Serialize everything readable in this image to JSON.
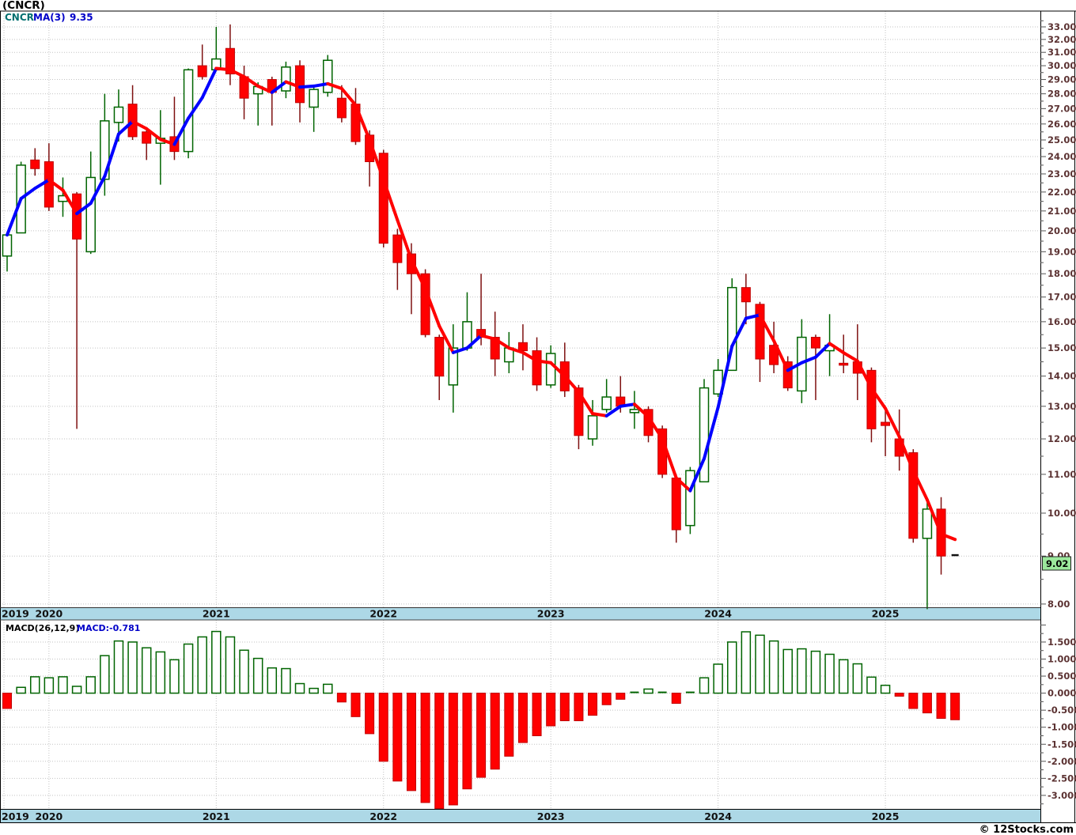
{
  "title": "(CNCR)",
  "price_legend": {
    "symbol": "CNCR",
    "ma_label": "MA(3)",
    "ma_value": "9.35"
  },
  "macd_legend": {
    "label": "MACD(26,12,9)",
    "value": "MACD:-0.781"
  },
  "last_price_label": "9.02",
  "copyright": "© 12Stocks.com",
  "x_axis": {
    "years": [
      "2019",
      "2020",
      "2021",
      "2022",
      "2023",
      "2024",
      "2025"
    ]
  },
  "colors": {
    "band": "#ADD8E6",
    "grid": "#c2c2c2",
    "border": "#000000",
    "tick": "#555555",
    "axis_text": "#5c3333",
    "year_text": "#111111",
    "title_text": "#000000",
    "legend_symbol": "#007070",
    "legend_blue": "#0000C8",
    "legend_black": "#000000",
    "candle_up_stroke": "#006400",
    "candle_up_fill": "#ffffff",
    "candle_down_fill": "#FF0000",
    "candle_down_stroke": "#C00000",
    "candle_down_wick": "#7E1010",
    "candle_flat": "#111111",
    "ma_up": "#0000FF",
    "ma_down": "#FF0000",
    "macd_pos_stroke": "#006400",
    "macd_pos_fill": "#ffffff",
    "macd_neg_fill": "#FF0000",
    "macd_neg_stroke": "#C00000",
    "last_price_bg": "#9CE89C",
    "last_price_border": "#222222",
    "last_price_text": "#000000"
  },
  "chart_data": [
    {
      "type": "candlestick",
      "title": "CNCR monthly price with MA(3)",
      "interval": "monthly",
      "start": "2019-10",
      "end": "2025-06",
      "scale": "log",
      "ma_period": 3,
      "ma_last_value": 9.35,
      "last_close": 9.02,
      "y_axis": {
        "min": 7.9,
        "max": 33.2,
        "labels": [
          "8.00",
          "9.00",
          "10.00",
          "11.00",
          "12.00",
          "13.00",
          "14.00",
          "15.00",
          "16.00",
          "17.00",
          "18.00",
          "19.00",
          "20.00",
          "21.00",
          "22.00",
          "23.00",
          "24.00",
          "25.00",
          "26.00",
          "27.00",
          "28.00",
          "29.00",
          "30.00",
          "31.00",
          "32.00",
          "33.00"
        ]
      },
      "ohlc": [
        [
          18.8,
          19.9,
          18.1,
          19.8
        ],
        [
          19.9,
          23.7,
          19.9,
          23.5
        ],
        [
          23.8,
          24.5,
          22.9,
          23.3
        ],
        [
          23.7,
          24.8,
          21.0,
          21.2
        ],
        [
          21.5,
          22.8,
          20.7,
          21.8
        ],
        [
          21.9,
          22.0,
          12.3,
          19.6
        ],
        [
          19.0,
          24.3,
          18.9,
          22.8
        ],
        [
          22.7,
          28.0,
          21.8,
          26.2
        ],
        [
          26.1,
          28.3,
          24.9,
          27.1
        ],
        [
          27.3,
          28.6,
          25.0,
          25.2
        ],
        [
          25.5,
          25.7,
          23.8,
          24.8
        ],
        [
          24.8,
          26.9,
          22.4,
          25.1
        ],
        [
          25.2,
          27.8,
          23.8,
          24.3
        ],
        [
          24.3,
          29.8,
          23.9,
          29.7
        ],
        [
          30.0,
          31.6,
          29.0,
          29.2
        ],
        [
          29.7,
          33.0,
          29.6,
          30.5
        ],
        [
          31.3,
          33.2,
          28.6,
          29.4
        ],
        [
          29.2,
          30.0,
          26.3,
          27.7
        ],
        [
          28.0,
          28.8,
          25.9,
          28.5
        ],
        [
          29.0,
          29.2,
          25.9,
          28.1
        ],
        [
          28.2,
          30.3,
          27.7,
          29.9
        ],
        [
          30.0,
          30.4,
          26.1,
          27.4
        ],
        [
          27.1,
          28.5,
          25.5,
          28.3
        ],
        [
          28.1,
          30.8,
          27.8,
          30.4
        ],
        [
          27.7,
          28.6,
          26.1,
          26.4
        ],
        [
          27.3,
          28.4,
          24.7,
          24.9
        ],
        [
          25.3,
          25.6,
          22.3,
          23.7
        ],
        [
          24.2,
          24.4,
          19.2,
          19.4
        ],
        [
          19.8,
          20.1,
          17.3,
          18.5
        ],
        [
          18.9,
          19.4,
          16.3,
          18.0
        ],
        [
          18.0,
          18.2,
          15.4,
          15.5
        ],
        [
          15.4,
          15.5,
          13.2,
          14.0
        ],
        [
          13.7,
          15.9,
          12.8,
          15.0
        ],
        [
          15.0,
          17.2,
          14.9,
          16.0
        ],
        [
          15.7,
          18.0,
          15.1,
          15.4
        ],
        [
          15.4,
          16.4,
          14.0,
          14.6
        ],
        [
          14.5,
          15.6,
          14.1,
          15.0
        ],
        [
          15.2,
          15.9,
          14.2,
          14.9
        ],
        [
          14.9,
          15.4,
          13.5,
          13.7
        ],
        [
          13.7,
          15.1,
          13.6,
          14.8
        ],
        [
          14.5,
          15.2,
          13.3,
          13.5
        ],
        [
          13.6,
          13.7,
          11.7,
          12.1
        ],
        [
          12.0,
          13.2,
          11.8,
          12.7
        ],
        [
          12.9,
          13.9,
          12.8,
          13.3
        ],
        [
          13.3,
          14.0,
          12.8,
          13.0
        ],
        [
          12.8,
          13.5,
          12.3,
          12.9
        ],
        [
          12.9,
          13.0,
          11.9,
          12.1
        ],
        [
          12.3,
          12.4,
          10.9,
          11.0
        ],
        [
          10.9,
          11.0,
          9.3,
          9.6
        ],
        [
          9.7,
          11.2,
          9.5,
          11.1
        ],
        [
          10.8,
          13.9,
          10.8,
          13.6
        ],
        [
          13.4,
          14.6,
          13.3,
          14.2
        ],
        [
          14.2,
          17.8,
          14.2,
          17.4
        ],
        [
          17.4,
          18.0,
          15.9,
          16.8
        ],
        [
          16.7,
          16.8,
          13.8,
          14.6
        ],
        [
          15.1,
          16.0,
          14.1,
          14.4
        ],
        [
          14.5,
          14.7,
          13.5,
          13.6
        ],
        [
          13.5,
          16.1,
          13.1,
          15.4
        ],
        [
          15.4,
          15.5,
          13.2,
          15.0
        ],
        [
          14.9,
          16.3,
          14.0,
          15.1
        ],
        [
          14.45,
          15.5,
          14.1,
          14.38
        ],
        [
          14.5,
          15.9,
          13.2,
          14.1
        ],
        [
          14.2,
          14.3,
          11.9,
          12.3
        ],
        [
          12.5,
          13.0,
          11.5,
          12.4
        ],
        [
          12.0,
          12.9,
          11.1,
          11.5
        ],
        [
          11.6,
          11.7,
          9.3,
          9.4
        ],
        [
          9.4,
          10.3,
          7.9,
          10.1
        ],
        [
          10.1,
          10.4,
          8.6,
          9.0
        ],
        [
          9.02,
          9.06,
          8.98,
          9.02
        ]
      ]
    },
    {
      "type": "bar",
      "title": "MACD(26,12,9) histogram",
      "last_value": -0.781,
      "y_axis": {
        "labels": [
          "1.500",
          "1.000",
          "0.500",
          "0.000",
          "-0.500",
          "-1.000",
          "-1.500",
          "-2.000",
          "-2.500",
          "-3.000"
        ]
      },
      "values": [
        -0.45,
        0.17,
        0.48,
        0.45,
        0.48,
        0.2,
        0.48,
        1.1,
        1.53,
        1.5,
        1.33,
        1.21,
        0.98,
        1.44,
        1.65,
        1.81,
        1.65,
        1.26,
        1.02,
        0.74,
        0.72,
        0.28,
        0.14,
        0.26,
        -0.26,
        -0.69,
        -1.19,
        -2.0,
        -2.58,
        -2.86,
        -3.21,
        -3.44,
        -3.28,
        -2.81,
        -2.47,
        -2.23,
        -1.85,
        -1.45,
        -1.25,
        -0.96,
        -0.81,
        -0.81,
        -0.65,
        -0.34,
        -0.18,
        0.02,
        0.12,
        0.05,
        -0.3,
        0.03,
        0.45,
        0.85,
        1.5,
        1.8,
        1.7,
        1.53,
        1.28,
        1.3,
        1.23,
        1.14,
        0.98,
        0.86,
        0.47,
        0.23,
        -0.09,
        -0.45,
        -0.58,
        -0.74,
        -0.781
      ]
    }
  ]
}
